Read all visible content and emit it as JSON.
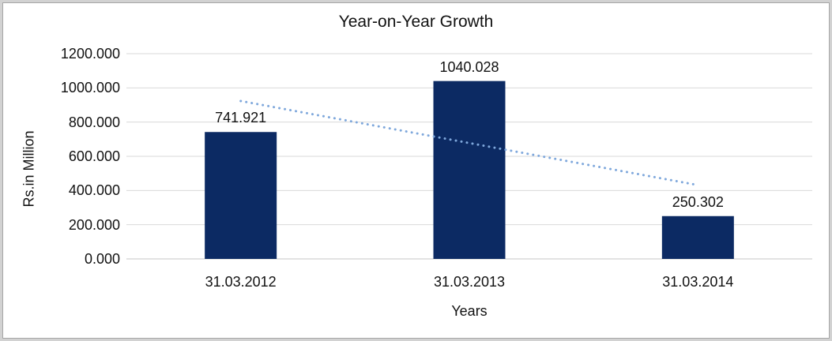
{
  "chart_data": {
    "type": "bar",
    "title": "Year-on-Year Growth",
    "categories": [
      "31.03.2012",
      "31.03.2013",
      "31.03.2014"
    ],
    "values": [
      741.921,
      1040.028,
      250.302
    ],
    "data_labels": [
      "741.921",
      "1040.028",
      "250.302"
    ],
    "xlabel": "Years",
    "ylabel": "Rs.in Million",
    "ylim": [
      0,
      1200
    ],
    "ytick_interval": 200,
    "ytick_labels": [
      "0.000",
      "200.000",
      "400.000",
      "600.000",
      "800.000",
      "1000.000",
      "1200.000"
    ],
    "grid": true,
    "legend": "none",
    "trendline": {
      "kind": "linear",
      "style": "dotted"
    },
    "colors": {
      "bar": "#0C2A63",
      "trendline": "#7FA8DC",
      "gridline": "#D9D9D9",
      "axis_line": "#C6C6C6",
      "text": "#111111",
      "chart_border": "#A6A6A6",
      "outer_band": "#D2D2D2",
      "background": "#FFFFFF"
    }
  }
}
